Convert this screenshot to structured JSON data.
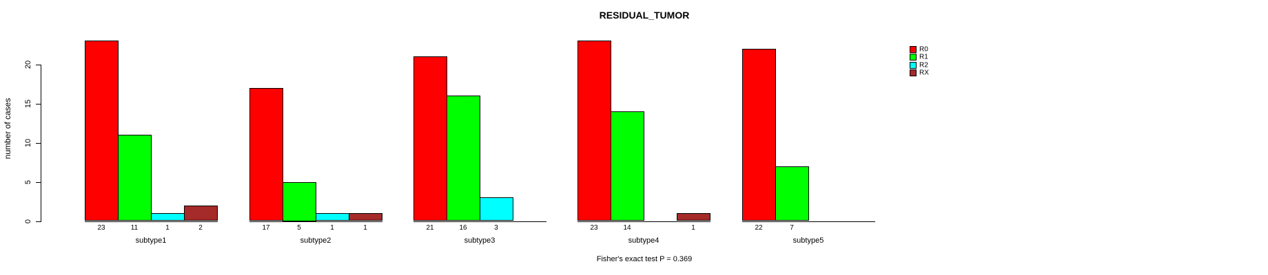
{
  "chart_data": {
    "type": "bar",
    "grouped": true,
    "title": "RESIDUAL_TUMOR",
    "ylabel": "number of cases",
    "xlabel": "",
    "annotation": "Fisher's exact test P = 0.369",
    "categories": [
      "subtype1",
      "subtype2",
      "subtype3",
      "subtype4",
      "subtype5"
    ],
    "series": [
      {
        "name": "R0",
        "color": "#FF0000",
        "values": [
          23,
          17,
          21,
          23,
          22
        ]
      },
      {
        "name": "R1",
        "color": "#00FF00",
        "values": [
          11,
          5,
          16,
          14,
          7
        ]
      },
      {
        "name": "R2",
        "color": "#00FFFF",
        "values": [
          1,
          1,
          3,
          0,
          0
        ]
      },
      {
        "name": "RX",
        "color": "#A52A2A",
        "values": [
          2,
          1,
          0,
          1,
          0
        ]
      }
    ],
    "yticks": [
      0,
      5,
      10,
      15,
      20
    ],
    "ylim": [
      0,
      23
    ],
    "bar_value_labels_shown": true,
    "zero_bars_drawn_as_baseline": true,
    "grid": false,
    "legend_position": "top-right"
  },
  "colors": {
    "axis": "#000000",
    "text": "#000000",
    "background": "#FFFFFF"
  }
}
